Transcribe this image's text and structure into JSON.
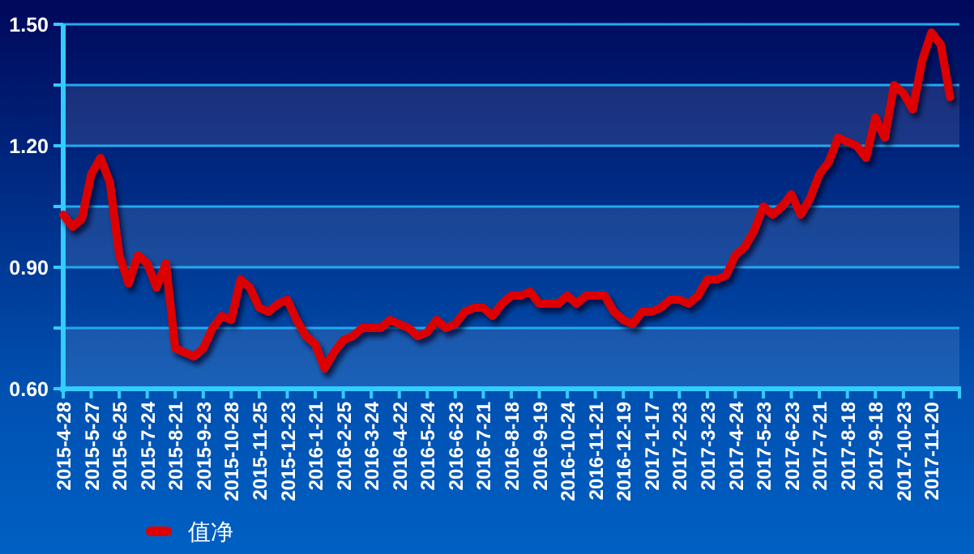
{
  "chart_data": {
    "type": "line",
    "categories": [
      "2015-4-28",
      null,
      null,
      "2015-5-27",
      null,
      null,
      "2015-6-25",
      null,
      null,
      "2015-7-24",
      null,
      null,
      "2015-8-21",
      null,
      null,
      "2015-9-23",
      null,
      null,
      "2015-10-28",
      null,
      null,
      "2015-11-25",
      null,
      null,
      "2015-12-23",
      null,
      null,
      "2016-1-21",
      null,
      null,
      "2016-2-25",
      null,
      null,
      "2016-3-24",
      null,
      null,
      "2016-4-22",
      null,
      null,
      "2016-5-24",
      null,
      null,
      "2016-6-23",
      null,
      null,
      "2016-7-21",
      null,
      null,
      "2016-8-18",
      null,
      null,
      "2016-9-19",
      null,
      null,
      "2016-10-24",
      null,
      null,
      "2016-11-21",
      null,
      null,
      "2016-12-19",
      null,
      null,
      "2017-1-17",
      null,
      null,
      "2017-2-23",
      null,
      null,
      "2017-3-23",
      null,
      null,
      "2017-4-24",
      null,
      null,
      "2017-5-23",
      null,
      null,
      "2017-6-23",
      null,
      null,
      "2017-7-21",
      null,
      null,
      "2017-8-18",
      null,
      null,
      "2017-9-18",
      null,
      null,
      "2017-10-23",
      null,
      null,
      "2017-11-20",
      null,
      null,
      null
    ],
    "series": [
      {
        "name": "值净",
        "color": "#dd0000",
        "values": [
          1.03,
          1.0,
          1.02,
          1.13,
          1.17,
          1.11,
          0.93,
          0.86,
          0.93,
          0.91,
          0.85,
          0.91,
          0.7,
          0.69,
          0.68,
          0.7,
          0.75,
          0.78,
          0.77,
          0.87,
          0.85,
          0.8,
          0.79,
          0.81,
          0.82,
          0.77,
          0.73,
          0.71,
          0.65,
          0.69,
          0.72,
          0.73,
          0.75,
          0.75,
          0.75,
          0.77,
          0.76,
          0.75,
          0.73,
          0.74,
          0.77,
          0.75,
          0.76,
          0.79,
          0.8,
          0.8,
          0.78,
          0.81,
          0.83,
          0.83,
          0.84,
          0.81,
          0.81,
          0.81,
          0.83,
          0.81,
          0.83,
          0.83,
          0.83,
          0.79,
          0.77,
          0.76,
          0.79,
          0.79,
          0.8,
          0.82,
          0.82,
          0.81,
          0.83,
          0.87,
          0.87,
          0.88,
          0.93,
          0.95,
          0.99,
          1.05,
          1.03,
          1.05,
          1.08,
          1.03,
          1.07,
          1.13,
          1.16,
          1.22,
          1.21,
          1.2,
          1.17,
          1.27,
          1.22,
          1.35,
          1.33,
          1.29,
          1.41,
          1.48,
          1.45,
          1.32,
          null
        ]
      }
    ],
    "ylim": [
      0.6,
      1.5
    ],
    "yticks": [
      {
        "value": 0.6,
        "label": "0.60"
      },
      {
        "value": 0.75,
        "label": null
      },
      {
        "value": 0.9,
        "label": "0.90"
      },
      {
        "value": 1.05,
        "label": null
      },
      {
        "value": 1.2,
        "label": "1.20"
      },
      {
        "value": 1.35,
        "label": null
      },
      {
        "value": 1.5,
        "label": "1.50"
      }
    ],
    "grid": "y",
    "legend": "bottom left",
    "marker": "none",
    "line_style": "solid"
  }
}
